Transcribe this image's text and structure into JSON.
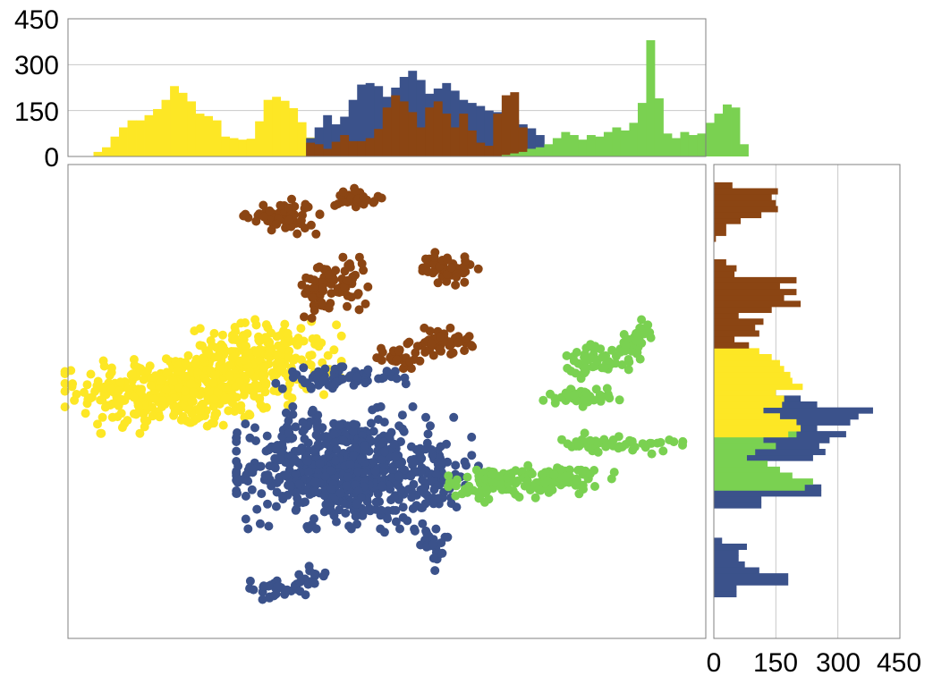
{
  "colors": {
    "yellow": "#FDE725",
    "blue": "#3B528B",
    "brown": "#8B4513",
    "green": "#7AD151",
    "frame": "#808080",
    "grid": "#C8C8C8"
  },
  "chart_data": [
    {
      "name": "scatter",
      "type": "scatter",
      "title": "",
      "xlabel": "",
      "ylabel": "",
      "xlim": [
        0,
        100
      ],
      "ylim": [
        0,
        100
      ],
      "grid": false,
      "tick_labels_shown": false,
      "clusters": [
        {
          "color": "yellow",
          "n": 1500,
          "cx": 17,
          "cy": 52,
          "sx": 7.6,
          "sy": 3.8,
          "angle": 0
        },
        {
          "color": "yellow",
          "n": 900,
          "cx": 30,
          "cy": 59,
          "sx": 5.6,
          "sy": 3.6,
          "angle": 0
        },
        {
          "color": "blue",
          "n": 2400,
          "cx": 42.5,
          "cy": 36,
          "sx": 7.0,
          "sy": 5.6,
          "angle": 0
        },
        {
          "color": "blue",
          "n": 400,
          "cx": 57,
          "cy": 34,
          "sx": 3.2,
          "sy": 5.5,
          "angle": 0
        },
        {
          "color": "blue",
          "n": 300,
          "cx": 42,
          "cy": 55,
          "sx": 4.8,
          "sy": 1.0,
          "angle": 0
        },
        {
          "color": "blue",
          "n": 80,
          "cx": 57.5,
          "cy": 18.5,
          "sx": 1.0,
          "sy": 2.0,
          "angle": 0
        },
        {
          "color": "blue",
          "n": 100,
          "cx": 31.5,
          "cy": 10.5,
          "sx": 2.3,
          "sy": 1.0,
          "angle": 0
        },
        {
          "color": "blue",
          "n": 80,
          "cx": 38,
          "cy": 12.5,
          "sx": 1.8,
          "sy": 1.3,
          "angle": 0.6
        },
        {
          "color": "brown",
          "n": 250,
          "cx": 33.5,
          "cy": 89,
          "sx": 2.6,
          "sy": 1.6,
          "angle": 0
        },
        {
          "color": "brown",
          "n": 120,
          "cx": 45.5,
          "cy": 93,
          "sx": 1.6,
          "sy": 0.9,
          "angle": 0
        },
        {
          "color": "brown",
          "n": 350,
          "cx": 41.5,
          "cy": 74,
          "sx": 2.8,
          "sy": 2.8,
          "angle": 0
        },
        {
          "color": "brown",
          "n": 200,
          "cx": 59.5,
          "cy": 78,
          "sx": 2.1,
          "sy": 1.5,
          "angle": 0
        },
        {
          "color": "brown",
          "n": 220,
          "cx": 58.5,
          "cy": 62.5,
          "sx": 2.3,
          "sy": 1.3,
          "angle": 0
        },
        {
          "color": "brown",
          "n": 120,
          "cx": 51.5,
          "cy": 59.5,
          "sx": 1.6,
          "sy": 1.1,
          "angle": 0
        },
        {
          "color": "green",
          "n": 600,
          "cx": 72,
          "cy": 33,
          "sx": 6.0,
          "sy": 1.5,
          "angle": 0.12
        },
        {
          "color": "green",
          "n": 200,
          "cx": 86,
          "cy": 41,
          "sx": 4.5,
          "sy": 0.9,
          "angle": -0.05
        },
        {
          "color": "green",
          "n": 150,
          "cx": 80.5,
          "cy": 51,
          "sx": 2.6,
          "sy": 0.9,
          "angle": 0
        },
        {
          "color": "green",
          "n": 150,
          "cx": 82,
          "cy": 59,
          "sx": 2.0,
          "sy": 1.8,
          "angle": 0
        },
        {
          "color": "green",
          "n": 200,
          "cx": 88.5,
          "cy": 62,
          "sx": 1.4,
          "sy": 2.8,
          "angle": -0.6
        },
        {
          "color": "green",
          "n": 60,
          "cx": 65,
          "cy": 34.5,
          "sx": 2.0,
          "sy": 0.7,
          "angle": 0
        }
      ]
    },
    {
      "name": "top-histogram",
      "type": "bar",
      "orientation": "vertical",
      "title": "",
      "xlabel": "",
      "ylabel": "",
      "ylim": [
        0,
        450
      ],
      "yticks": [
        "0",
        "150",
        "300",
        "450"
      ],
      "grid": true,
      "series": [
        {
          "color": "yellow",
          "start": 3,
          "values": [
            15,
            30,
            65,
            95,
            118,
            118,
            135,
            155,
            185,
            230,
            208,
            180,
            140,
            132,
            118,
            65,
            60,
            55,
            58,
            115,
            185,
            195,
            182,
            158,
            112,
            62,
            55,
            35,
            18,
            12
          ]
        },
        {
          "color": "blue",
          "start": 28,
          "values": [
            60,
            95,
            135,
            105,
            130,
            185,
            235,
            240,
            230,
            195,
            225,
            260,
            280,
            250,
            205,
            222,
            240,
            215,
            185,
            175,
            165,
            150,
            145,
            148,
            120,
            105,
            92,
            70
          ]
        },
        {
          "color": "brown",
          "start": 28,
          "values": [
            45,
            40,
            25,
            48,
            70,
            50,
            50,
            60,
            90,
            160,
            200,
            180,
            145,
            95,
            160,
            180,
            140,
            95,
            140,
            85,
            45,
            35,
            140,
            200,
            210,
            95,
            20
          ]
        },
        {
          "color": "green",
          "start": 51,
          "values": [
            5,
            10,
            15,
            25,
            30,
            40,
            60,
            80,
            70,
            55,
            70,
            65,
            80,
            95,
            85,
            110,
            175,
            380,
            190,
            75,
            60,
            80,
            70,
            75,
            110,
            140,
            170,
            160,
            40
          ]
        }
      ]
    },
    {
      "name": "right-histogram",
      "type": "bar",
      "orientation": "horizontal",
      "title": "",
      "xlabel": "",
      "ylabel": "",
      "xlim": [
        0,
        450
      ],
      "xticks": [
        "0",
        "150",
        "300",
        "450"
      ],
      "grid": true,
      "series": [
        {
          "color": "blue",
          "start": 7,
          "values": [
            55,
            55,
            180,
            180,
            110,
            75,
            60,
            60,
            80,
            20,
            0,
            0,
            0,
            0,
            0,
            115,
            115,
            260,
            260,
            185,
            130,
            115,
            115,
            240,
            270,
            255,
            280,
            320,
            250,
            330,
            350,
            385,
            250,
            210,
            40
          ]
        },
        {
          "color": "green",
          "start": 25,
          "values": [
            220,
            240,
            190,
            160,
            130,
            80,
            100,
            150,
            120,
            200,
            190,
            100,
            60
          ]
        },
        {
          "color": "yellow",
          "start": 34,
          "values": [
            180,
            210,
            200,
            160,
            120,
            165,
            170,
            150,
            215,
            190,
            185,
            170,
            160,
            140,
            110
          ]
        },
        {
          "color": "brown",
          "start": 49,
          "values": [
            85,
            50,
            110,
            100,
            120,
            60,
            140,
            210,
            170,
            200,
            160,
            200,
            50,
            55,
            30,
            0,
            0,
            0,
            5,
            30,
            30,
            65,
            115,
            155,
            150,
            140,
            155,
            45
          ]
        }
      ]
    }
  ]
}
